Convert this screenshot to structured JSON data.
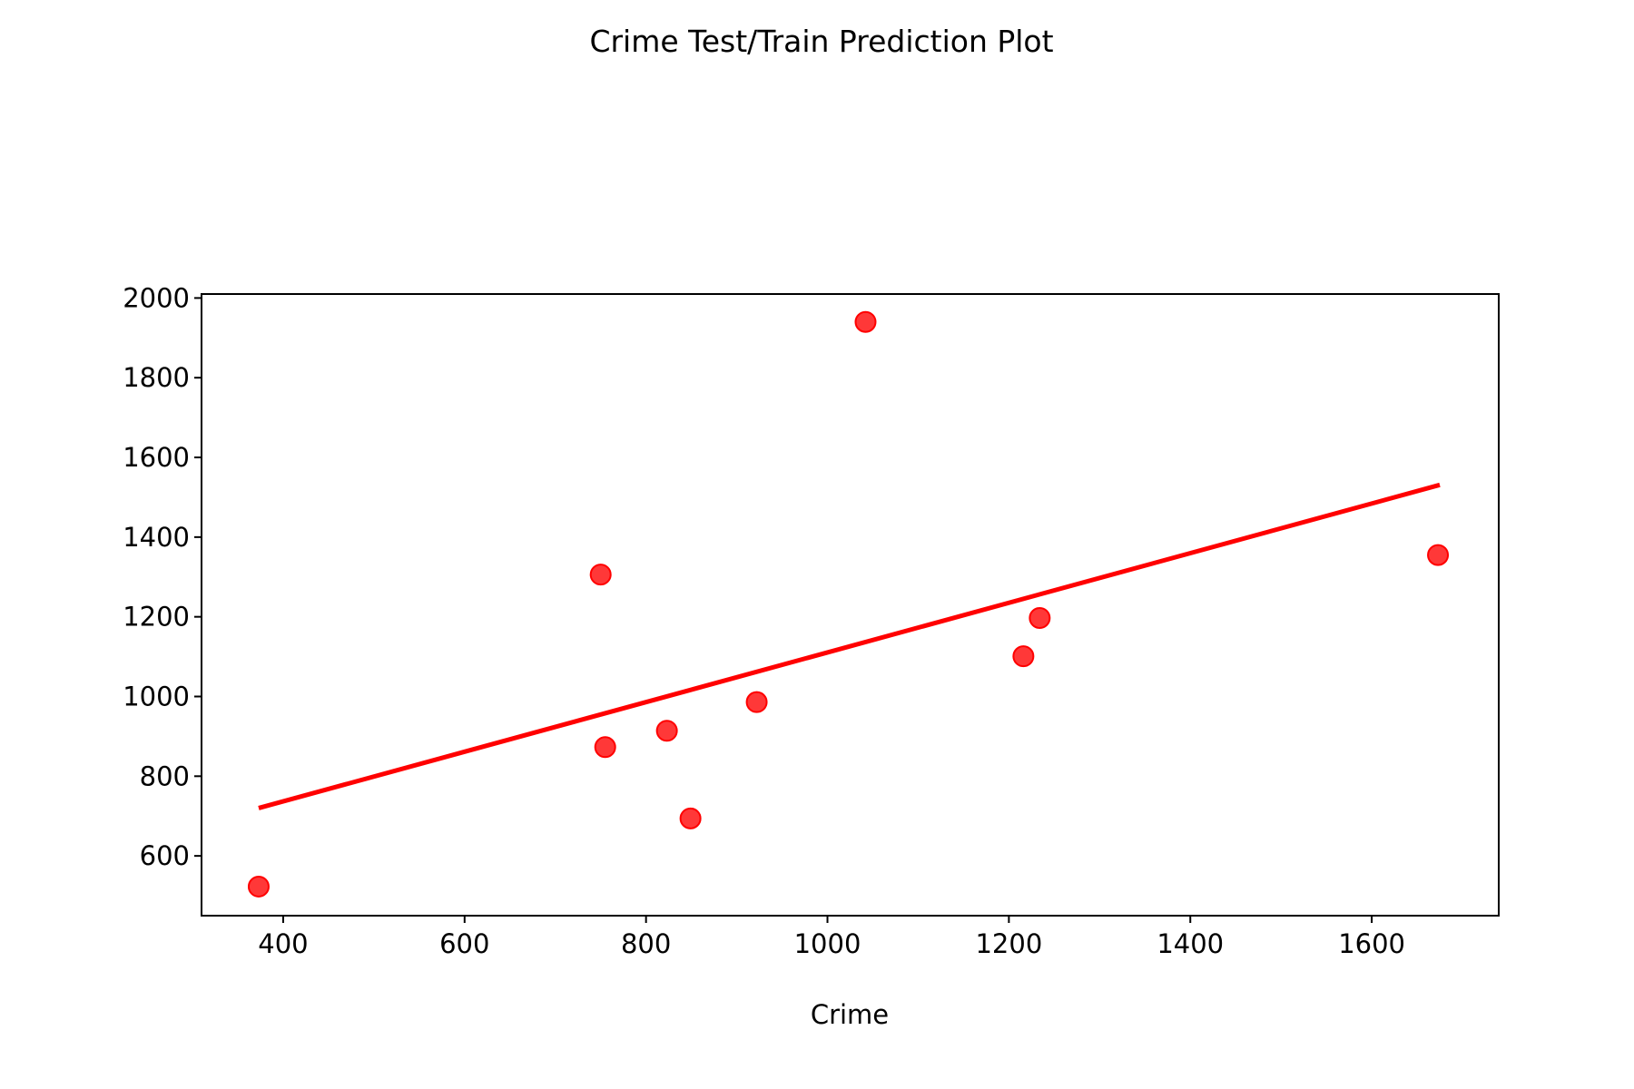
{
  "chart_data": {
    "type": "scatter",
    "title": "Crime Test/Train Prediction Plot",
    "xlabel": "Crime",
    "ylabel": "",
    "xlim": [
      310,
      1740
    ],
    "ylim": [
      450,
      2010
    ],
    "xticks": [
      400,
      600,
      800,
      1000,
      1200,
      1400,
      1600
    ],
    "yticks": [
      600,
      800,
      1000,
      1200,
      1400,
      1600,
      1800,
      2000
    ],
    "grid": false,
    "series": [
      {
        "kind": "scatter",
        "color": "#ff0000",
        "points": [
          {
            "x": 373,
            "y": 523
          },
          {
            "x": 750,
            "y": 1306
          },
          {
            "x": 755,
            "y": 873
          },
          {
            "x": 823,
            "y": 914
          },
          {
            "x": 849,
            "y": 694
          },
          {
            "x": 922,
            "y": 986
          },
          {
            "x": 1042,
            "y": 1940
          },
          {
            "x": 1216,
            "y": 1101
          },
          {
            "x": 1234,
            "y": 1197
          },
          {
            "x": 1673,
            "y": 1355
          }
        ]
      },
      {
        "kind": "line",
        "color": "#ff0000",
        "points": [
          {
            "x": 373,
            "y": 720
          },
          {
            "x": 1675,
            "y": 1531
          }
        ]
      }
    ]
  }
}
